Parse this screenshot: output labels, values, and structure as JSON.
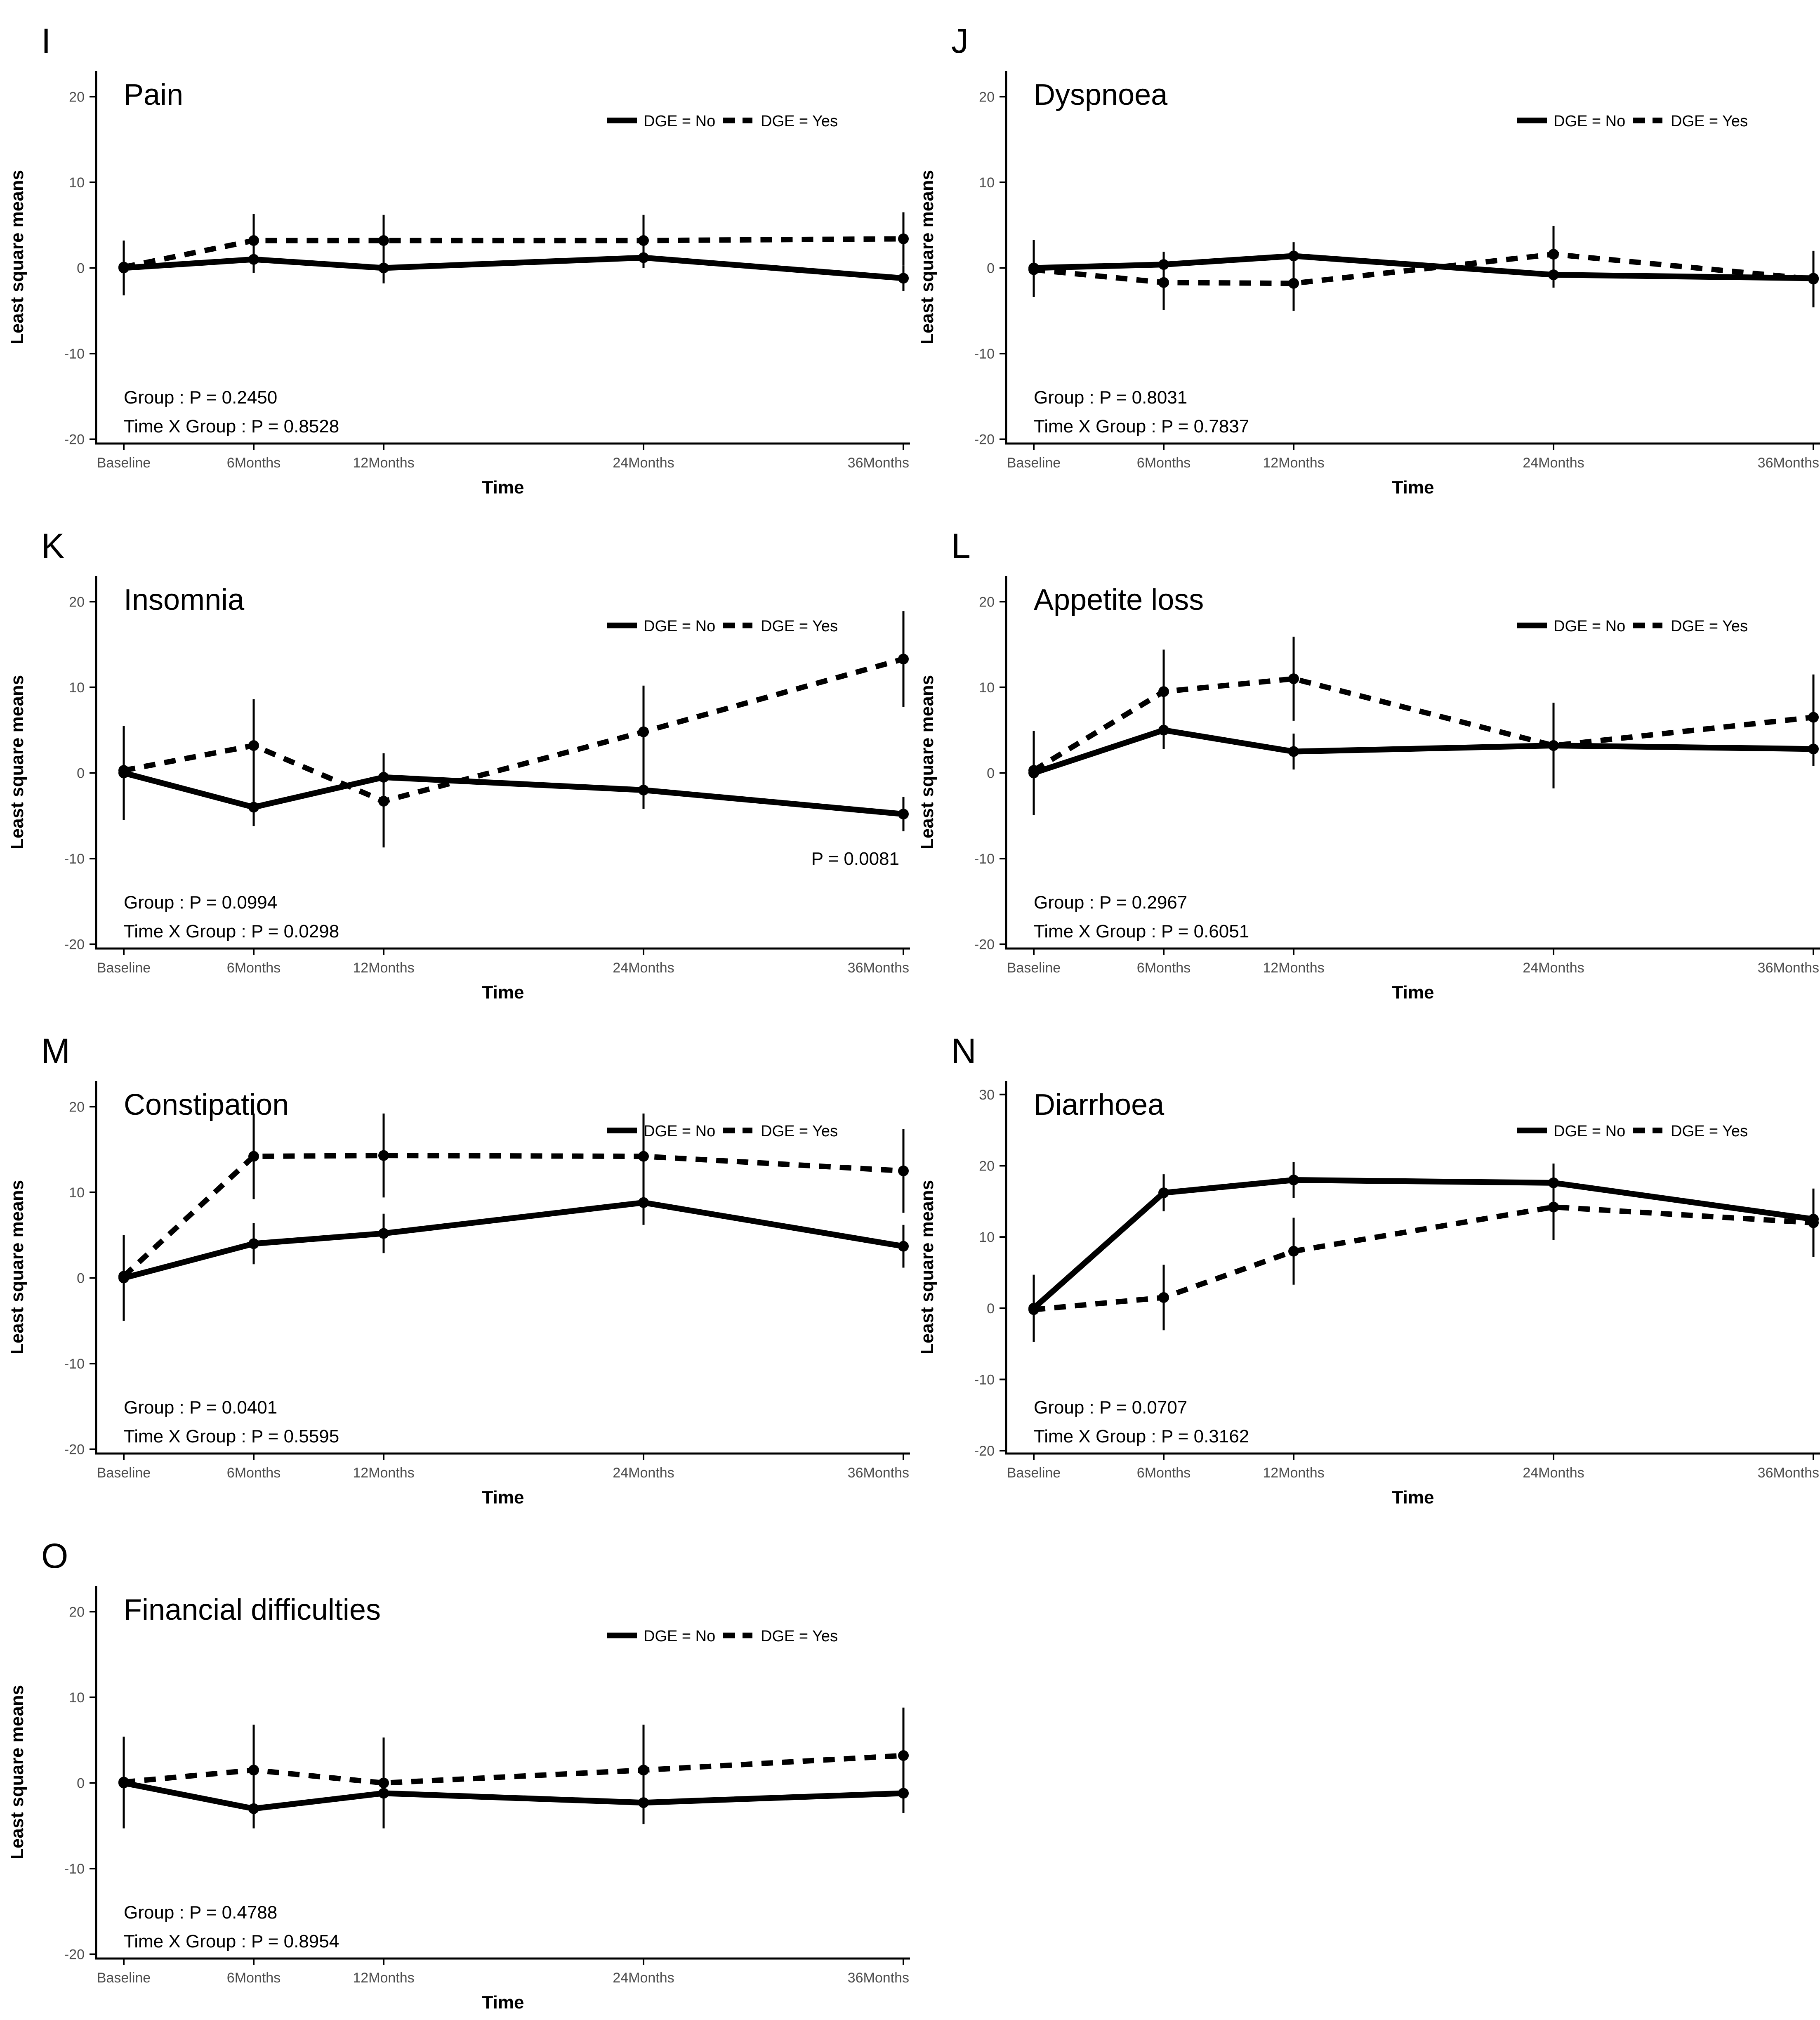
{
  "figure": {
    "background": "#ffffff",
    "foreground": "#000000",
    "tick_label_color": "#4d4d4d",
    "axis_color": "#000000"
  },
  "chart_data": {
    "type": "line",
    "x_months": [
      0,
      6,
      12,
      24,
      36
    ],
    "categories": [
      "Baseline",
      "6Months",
      "12Months",
      "24Months",
      "36Months"
    ],
    "xlabel": "Time",
    "ylabel": "Least square means",
    "legend": [
      {
        "label": "DGE = No",
        "style": "solid"
      },
      {
        "label": "DGE = Yes",
        "style": "dashed"
      }
    ],
    "panels": [
      {
        "letter": "I",
        "title": "Pain",
        "ylim": [
          -20.5,
          23
        ],
        "yticks": [
          20,
          10,
          0,
          -10,
          -20
        ],
        "group_p": "Group : P = 0.2450",
        "interaction_p": "Time X Group : P = 0.8528",
        "annotation": null,
        "series": [
          {
            "name": "DGE = No",
            "style": "solid",
            "values": [
              0,
              1,
              0,
              1.2,
              -1.2
            ],
            "err": [
              3.2,
              1.6,
              1.8,
              1.2,
              1.5
            ]
          },
          {
            "name": "DGE = Yes",
            "style": "dashed",
            "values": [
              0.1,
              3.2,
              3.2,
              3.2,
              3.4
            ],
            "err": [
              3.0,
              3.1,
              3.0,
              3.0,
              3.1
            ]
          }
        ]
      },
      {
        "letter": "J",
        "title": "Dyspnoea",
        "ylim": [
          -20.5,
          23
        ],
        "yticks": [
          20,
          10,
          0,
          -10,
          -20
        ],
        "group_p": "Group : P = 0.8031",
        "interaction_p": "Time X Group : P = 0.7837",
        "annotation": null,
        "series": [
          {
            "name": "DGE = No",
            "style": "solid",
            "values": [
              0,
              0.4,
              1.4,
              -0.8,
              -1.2
            ],
            "err": [
              3.3,
              1.5,
              1.6,
              1.5,
              1.4
            ]
          },
          {
            "name": "DGE = Yes",
            "style": "dashed",
            "values": [
              -0.2,
              -1.7,
              -1.8,
              1.6,
              -1.3
            ],
            "err": [
              3.2,
              3.2,
              3.2,
              3.3,
              3.3
            ]
          }
        ]
      },
      {
        "letter": "K",
        "title": "Insomnia",
        "ylim": [
          -20.5,
          23
        ],
        "yticks": [
          20,
          10,
          0,
          -10,
          -20
        ],
        "group_p": "Group : P = 0.0994",
        "interaction_p": "Time X Group : P = 0.0298",
        "annotation": "P = 0.0081",
        "series": [
          {
            "name": "DGE = No",
            "style": "solid",
            "values": [
              0,
              -4,
              -0.5,
              -2,
              -4.8
            ],
            "err": [
              5.5,
              2.2,
              2.8,
              2.2,
              2.0
            ]
          },
          {
            "name": "DGE = Yes",
            "style": "dashed",
            "values": [
              0.3,
              3.2,
              -3.3,
              4.8,
              13.3
            ],
            "err": [
              5.2,
              5.4,
              5.4,
              5.4,
              5.6
            ]
          }
        ]
      },
      {
        "letter": "L",
        "title": "Appetite loss",
        "ylim": [
          -20.5,
          23
        ],
        "yticks": [
          20,
          10,
          0,
          -10,
          -20
        ],
        "group_p": "Group : P = 0.2967",
        "interaction_p": "Time X Group : P = 0.6051",
        "annotation": null,
        "series": [
          {
            "name": "DGE = No",
            "style": "solid",
            "values": [
              0,
              5,
              2.5,
              3.2,
              2.8
            ],
            "err": [
              4.9,
              2.2,
              2.1,
              5.0,
              2.0
            ]
          },
          {
            "name": "DGE = Yes",
            "style": "dashed",
            "values": [
              0.3,
              9.5,
              11,
              3.2,
              6.5
            ],
            "err": [
              4.5,
              4.9,
              4.9,
              4.9,
              5.0
            ]
          }
        ]
      },
      {
        "letter": "M",
        "title": "Constipation",
        "ylim": [
          -20.5,
          23
        ],
        "yticks": [
          20,
          10,
          0,
          -10,
          -20
        ],
        "group_p": "Group : P = 0.0401",
        "interaction_p": "Time X Group : P = 0.5595",
        "annotation": null,
        "series": [
          {
            "name": "DGE = No",
            "style": "solid",
            "values": [
              0,
              4,
              5.2,
              8.8,
              3.7
            ],
            "err": [
              5.0,
              2.4,
              2.3,
              2.6,
              2.5
            ]
          },
          {
            "name": "DGE = Yes",
            "style": "dashed",
            "values": [
              0.2,
              14.2,
              14.3,
              14.2,
              12.5
            ],
            "err": [
              4.8,
              5.0,
              4.9,
              5.0,
              4.9
            ]
          }
        ]
      },
      {
        "letter": "N",
        "title": "Diarrhoea",
        "ylim": [
          -20.4,
          31.9
        ],
        "yticks": [
          30,
          20,
          10,
          0,
          -10,
          -20
        ],
        "group_p": "Group : P = 0.0707",
        "interaction_p": "Time X Group : P = 0.3162",
        "annotation": null,
        "series": [
          {
            "name": "DGE = No",
            "style": "solid",
            "values": [
              0,
              16.2,
              18,
              17.6,
              12.5
            ],
            "err": [
              4.7,
              2.6,
              2.5,
              2.7,
              2.4
            ]
          },
          {
            "name": "DGE = Yes",
            "style": "dashed",
            "values": [
              -0.2,
              1.5,
              8,
              14.2,
              12
            ],
            "err": [
              4.5,
              4.6,
              4.7,
              4.6,
              4.8
            ]
          }
        ]
      },
      {
        "letter": "O",
        "title": "Financial difficulties",
        "ylim": [
          -20.5,
          23
        ],
        "yticks": [
          20,
          10,
          0,
          -10,
          -20
        ],
        "group_p": "Group : P = 0.4788",
        "interaction_p": "Time X Group : P = 0.8954",
        "annotation": null,
        "series": [
          {
            "name": "DGE = No",
            "style": "solid",
            "values": [
              0,
              -3,
              -1.2,
              -2.3,
              -1.2
            ],
            "err": [
              5.3,
              2.3,
              2.4,
              2.5,
              2.3
            ]
          },
          {
            "name": "DGE = Yes",
            "style": "dashed",
            "values": [
              0.1,
              1.5,
              0,
              1.5,
              3.2
            ],
            "err": [
              5.3,
              5.3,
              5.3,
              5.3,
              5.6
            ]
          }
        ]
      }
    ]
  }
}
